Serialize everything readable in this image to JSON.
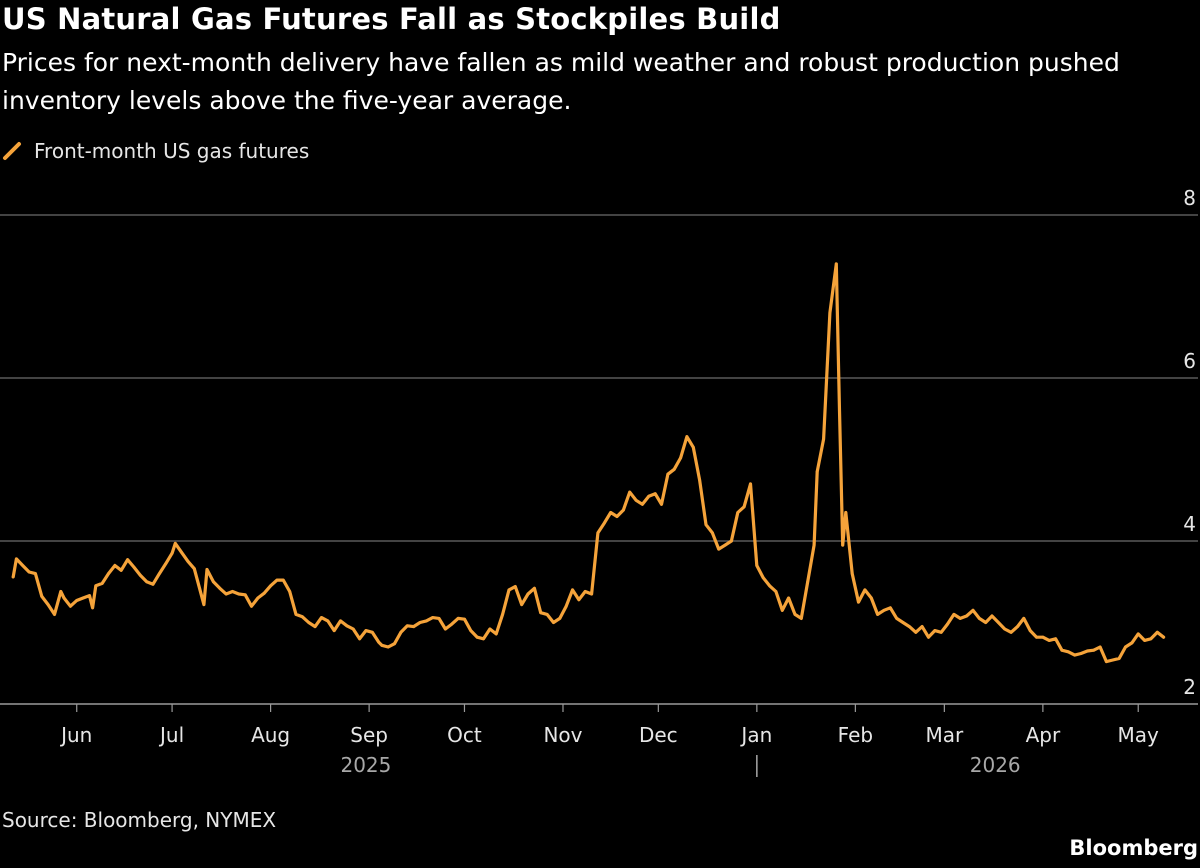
{
  "header": {
    "title": "US Natural Gas Futures Fall as Stockpiles Build",
    "subtitle": "Prices for next-month delivery have fallen as mild weather and robust production pushed inventory levels above the five-year average."
  },
  "footer": {
    "source": "Source: Bloomberg, NYMEX",
    "brand": "Bloomberg"
  },
  "colors": {
    "line": "#f5a33a",
    "grid": "#6b6b6b",
    "text": "#e6e6e6",
    "background": "#000000"
  },
  "chart_data": {
    "type": "line",
    "title": "US Natural Gas Futures Fall as Stockpiles Build",
    "xlabel": "",
    "ylabel": "",
    "ylim": [
      2,
      8
    ],
    "yticks": [
      2,
      4,
      6,
      8
    ],
    "grid": true,
    "legend_placement": "top-left",
    "x_ticks": [
      {
        "date": "2025-06-01",
        "label": "Jun"
      },
      {
        "date": "2025-07-01",
        "label": "Jul"
      },
      {
        "date": "2025-08-01",
        "label": "Aug"
      },
      {
        "date": "2025-09-01",
        "label": "Sep"
      },
      {
        "date": "2025-10-01",
        "label": "Oct"
      },
      {
        "date": "2025-11-01",
        "label": "Nov"
      },
      {
        "date": "2025-12-01",
        "label": "Dec"
      },
      {
        "date": "2026-01-01",
        "label": "Jan"
      },
      {
        "date": "2026-02-01",
        "label": "Feb"
      },
      {
        "date": "2026-03-01",
        "label": "Mar"
      },
      {
        "date": "2026-04-01",
        "label": "Apr"
      },
      {
        "date": "2026-05-01",
        "label": "May"
      }
    ],
    "year_labels": [
      {
        "label": "2025",
        "date": "2025-08-31"
      },
      {
        "label": "2026",
        "date": "2026-03-17"
      }
    ],
    "year_divider": "2026-01-01",
    "series": [
      {
        "name": "Front-month US gas futures",
        "color": "#f5a33a",
        "points": [
          [
            "2025-05-12",
            3.56
          ],
          [
            "2025-05-13",
            3.78
          ],
          [
            "2025-05-15",
            3.7
          ],
          [
            "2025-05-17",
            3.62
          ],
          [
            "2025-05-19",
            3.6
          ],
          [
            "2025-05-21",
            3.32
          ],
          [
            "2025-05-23",
            3.22
          ],
          [
            "2025-05-25",
            3.1
          ],
          [
            "2025-05-27",
            3.38
          ],
          [
            "2025-05-28",
            3.3
          ],
          [
            "2025-05-30",
            3.2
          ],
          [
            "2025-06-01",
            3.27
          ],
          [
            "2025-06-03",
            3.3
          ],
          [
            "2025-06-05",
            3.33
          ],
          [
            "2025-06-06",
            3.18
          ],
          [
            "2025-06-07",
            3.45
          ],
          [
            "2025-06-09",
            3.48
          ],
          [
            "2025-06-11",
            3.6
          ],
          [
            "2025-06-13",
            3.7
          ],
          [
            "2025-06-15",
            3.64
          ],
          [
            "2025-06-17",
            3.77
          ],
          [
            "2025-06-19",
            3.68
          ],
          [
            "2025-06-21",
            3.58
          ],
          [
            "2025-06-23",
            3.5
          ],
          [
            "2025-06-25",
            3.47
          ],
          [
            "2025-06-27",
            3.6
          ],
          [
            "2025-06-29",
            3.72
          ],
          [
            "2025-07-01",
            3.85
          ],
          [
            "2025-07-02",
            3.97
          ],
          [
            "2025-07-04",
            3.86
          ],
          [
            "2025-07-06",
            3.75
          ],
          [
            "2025-07-08",
            3.66
          ],
          [
            "2025-07-11",
            3.22
          ],
          [
            "2025-07-12",
            3.65
          ],
          [
            "2025-07-14",
            3.5
          ],
          [
            "2025-07-16",
            3.42
          ],
          [
            "2025-07-18",
            3.35
          ],
          [
            "2025-07-20",
            3.38
          ],
          [
            "2025-07-22",
            3.35
          ],
          [
            "2025-07-24",
            3.34
          ],
          [
            "2025-07-26",
            3.2
          ],
          [
            "2025-07-28",
            3.3
          ],
          [
            "2025-07-30",
            3.36
          ],
          [
            "2025-08-01",
            3.45
          ],
          [
            "2025-08-03",
            3.52
          ],
          [
            "2025-08-05",
            3.52
          ],
          [
            "2025-08-07",
            3.38
          ],
          [
            "2025-08-09",
            3.1
          ],
          [
            "2025-08-11",
            3.07
          ],
          [
            "2025-08-13",
            3.0
          ],
          [
            "2025-08-15",
            2.95
          ],
          [
            "2025-08-17",
            3.06
          ],
          [
            "2025-08-19",
            3.02
          ],
          [
            "2025-08-21",
            2.9
          ],
          [
            "2025-08-23",
            3.02
          ],
          [
            "2025-08-25",
            2.96
          ],
          [
            "2025-08-27",
            2.92
          ],
          [
            "2025-08-29",
            2.8
          ],
          [
            "2025-08-31",
            2.9
          ],
          [
            "2025-09-02",
            2.88
          ],
          [
            "2025-09-04",
            2.76
          ],
          [
            "2025-09-05",
            2.72
          ],
          [
            "2025-09-07",
            2.7
          ],
          [
            "2025-09-09",
            2.74
          ],
          [
            "2025-09-11",
            2.88
          ],
          [
            "2025-09-13",
            2.96
          ],
          [
            "2025-09-15",
            2.95
          ],
          [
            "2025-09-17",
            3.0
          ],
          [
            "2025-09-19",
            3.02
          ],
          [
            "2025-09-21",
            3.06
          ],
          [
            "2025-09-23",
            3.05
          ],
          [
            "2025-09-25",
            2.92
          ],
          [
            "2025-09-27",
            2.98
          ],
          [
            "2025-09-29",
            3.05
          ],
          [
            "2025-10-01",
            3.04
          ],
          [
            "2025-10-03",
            2.9
          ],
          [
            "2025-10-05",
            2.82
          ],
          [
            "2025-10-07",
            2.8
          ],
          [
            "2025-10-09",
            2.92
          ],
          [
            "2025-10-11",
            2.86
          ],
          [
            "2025-10-13",
            3.1
          ],
          [
            "2025-10-15",
            3.4
          ],
          [
            "2025-10-17",
            3.44
          ],
          [
            "2025-10-19",
            3.22
          ],
          [
            "2025-10-21",
            3.35
          ],
          [
            "2025-10-23",
            3.42
          ],
          [
            "2025-10-25",
            3.12
          ],
          [
            "2025-10-27",
            3.1
          ],
          [
            "2025-10-29",
            3.0
          ],
          [
            "2025-10-31",
            3.05
          ],
          [
            "2025-11-02",
            3.2
          ],
          [
            "2025-11-04",
            3.4
          ],
          [
            "2025-11-06",
            3.28
          ],
          [
            "2025-11-08",
            3.38
          ],
          [
            "2025-11-10",
            3.35
          ],
          [
            "2025-11-12",
            4.1
          ],
          [
            "2025-11-14",
            4.22
          ],
          [
            "2025-11-16",
            4.35
          ],
          [
            "2025-11-18",
            4.3
          ],
          [
            "2025-11-20",
            4.38
          ],
          [
            "2025-11-22",
            4.6
          ],
          [
            "2025-11-24",
            4.5
          ],
          [
            "2025-11-26",
            4.45
          ],
          [
            "2025-11-28",
            4.55
          ],
          [
            "2025-11-30",
            4.58
          ],
          [
            "2025-12-02",
            4.45
          ],
          [
            "2025-12-04",
            4.82
          ],
          [
            "2025-12-06",
            4.88
          ],
          [
            "2025-12-08",
            5.02
          ],
          [
            "2025-12-10",
            5.28
          ],
          [
            "2025-12-12",
            5.15
          ],
          [
            "2025-12-14",
            4.75
          ],
          [
            "2025-12-16",
            4.2
          ],
          [
            "2025-12-18",
            4.1
          ],
          [
            "2025-12-20",
            3.9
          ],
          [
            "2025-12-22",
            3.95
          ],
          [
            "2025-12-24",
            4.0
          ],
          [
            "2025-12-26",
            4.35
          ],
          [
            "2025-12-28",
            4.42
          ],
          [
            "2025-12-30",
            4.7
          ],
          [
            "2026-01-01",
            3.7
          ],
          [
            "2026-01-03",
            3.55
          ],
          [
            "2026-01-05",
            3.45
          ],
          [
            "2026-01-07",
            3.38
          ],
          [
            "2026-01-09",
            3.15
          ],
          [
            "2026-01-11",
            3.3
          ],
          [
            "2026-01-13",
            3.1
          ],
          [
            "2026-01-15",
            3.05
          ],
          [
            "2026-01-17",
            3.5
          ],
          [
            "2026-01-19",
            3.95
          ],
          [
            "2026-01-20",
            4.85
          ],
          [
            "2026-01-22",
            5.25
          ],
          [
            "2026-01-24",
            6.8
          ],
          [
            "2026-01-26",
            7.4
          ],
          [
            "2026-01-27",
            5.6
          ],
          [
            "2026-01-28",
            3.95
          ],
          [
            "2026-01-29",
            4.35
          ],
          [
            "2026-01-31",
            3.6
          ],
          [
            "2026-02-02",
            3.25
          ],
          [
            "2026-02-04",
            3.4
          ],
          [
            "2026-02-06",
            3.3
          ],
          [
            "2026-02-08",
            3.1
          ],
          [
            "2026-02-10",
            3.15
          ],
          [
            "2026-02-12",
            3.18
          ],
          [
            "2026-02-14",
            3.05
          ],
          [
            "2026-02-16",
            3.0
          ],
          [
            "2026-02-18",
            2.95
          ],
          [
            "2026-02-20",
            2.88
          ],
          [
            "2026-02-22",
            2.95
          ],
          [
            "2026-02-24",
            2.82
          ],
          [
            "2026-02-26",
            2.9
          ],
          [
            "2026-02-28",
            2.88
          ],
          [
            "2026-03-02",
            2.98
          ],
          [
            "2026-03-04",
            3.1
          ],
          [
            "2026-03-06",
            3.05
          ],
          [
            "2026-03-08",
            3.08
          ],
          [
            "2026-03-10",
            3.15
          ],
          [
            "2026-03-12",
            3.05
          ],
          [
            "2026-03-14",
            3.0
          ],
          [
            "2026-03-16",
            3.08
          ],
          [
            "2026-03-18",
            3.0
          ],
          [
            "2026-03-20",
            2.92
          ],
          [
            "2026-03-22",
            2.88
          ],
          [
            "2026-03-24",
            2.95
          ],
          [
            "2026-03-26",
            3.05
          ],
          [
            "2026-03-28",
            2.9
          ],
          [
            "2026-03-30",
            2.82
          ],
          [
            "2026-04-01",
            2.82
          ],
          [
            "2026-04-03",
            2.78
          ],
          [
            "2026-04-05",
            2.8
          ],
          [
            "2026-04-07",
            2.66
          ],
          [
            "2026-04-09",
            2.64
          ],
          [
            "2026-04-11",
            2.6
          ],
          [
            "2026-04-13",
            2.62
          ],
          [
            "2026-04-15",
            2.65
          ],
          [
            "2026-04-17",
            2.66
          ],
          [
            "2026-04-19",
            2.7
          ],
          [
            "2026-04-21",
            2.52
          ],
          [
            "2026-04-23",
            2.54
          ],
          [
            "2026-04-25",
            2.56
          ],
          [
            "2026-04-27",
            2.7
          ],
          [
            "2026-04-29",
            2.75
          ],
          [
            "2026-05-01",
            2.86
          ],
          [
            "2026-05-03",
            2.78
          ],
          [
            "2026-05-05",
            2.8
          ],
          [
            "2026-05-07",
            2.88
          ],
          [
            "2026-05-09",
            2.82
          ]
        ]
      }
    ]
  }
}
